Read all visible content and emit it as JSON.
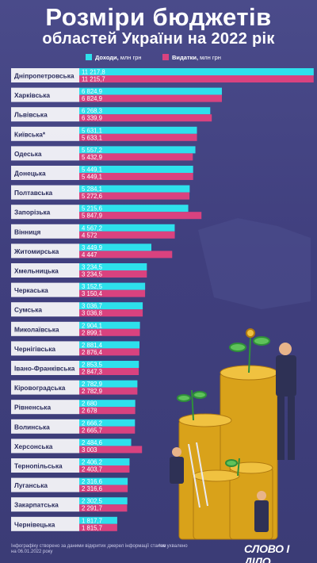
{
  "title_line1": "Розміри бюджетів",
  "title_line2": "областей України на 2022 рік",
  "legend": {
    "income": "Доходи,",
    "income_unit": "млн грн",
    "expense": "Видатки,",
    "expense_unit": "млн грн"
  },
  "colors": {
    "income": "#2ee0ec",
    "expense": "#d9427f",
    "coin": "#e0a91c"
  },
  "footer": {
    "source": "Інфографіку створено за даними відкритих джерел інформації станом на 06.01.2022 року",
    "asterisk_note": "*не ухвалено",
    "brand": "СЛОВО І ДІЛО"
  },
  "chart_data": {
    "type": "bar",
    "orientation": "horizontal",
    "categories": [
      "Дніпропетровська",
      "Харківська",
      "Львівська",
      "Київська*",
      "Одеська",
      "Донецька",
      "Полтавська",
      "Запорізька",
      "Вінниця",
      "Житомирська",
      "Хмельницька",
      "Черкаська",
      "Сумська",
      "Миколаївська",
      "Чернігівська",
      "Івано-Франківська",
      "Кіровоградська",
      "Рівненська",
      "Волинська",
      "Херсонська",
      "Тернопільська",
      "Луганська",
      "Закарпатська",
      "Чернівецька"
    ],
    "series": [
      {
        "name": "Доходи",
        "values": [
          11217.8,
          6824.9,
          6268.3,
          5631.1,
          5557.2,
          5449.1,
          5284.1,
          5215.6,
          4567.2,
          3449.9,
          3234.5,
          3152.5,
          3036.7,
          2904.1,
          2881.4,
          2853.5,
          2782.9,
          2680,
          2666.2,
          2484.6,
          2406.2,
          2316.6,
          2302.5,
          1817.7
        ],
        "labels": [
          "11 217,8",
          "6 824,9",
          "6 268,3",
          "5 631,1",
          "5 557,2",
          "5 449,1",
          "5 284,1",
          "5 215,6",
          "4 567,2",
          "3 449,9",
          "3 234,5",
          "3 152,5",
          "3 036,7",
          "2 904,1",
          "2 881,4",
          "2 853,5",
          "2 782,9",
          "2 680",
          "2 666,2",
          "2 484,6",
          "2 406,2",
          "2 316,6",
          "2 302,5",
          "1 817,7"
        ]
      },
      {
        "name": "Видатки",
        "values": [
          11215.7,
          6824.9,
          6339.9,
          5633.1,
          5432.9,
          5449.1,
          5272.6,
          5847.9,
          4572,
          4447,
          3234.5,
          3150.4,
          3036.8,
          2899.1,
          2876.4,
          2847.3,
          2782.9,
          2678,
          2665.7,
          3003,
          2403.7,
          2316.6,
          2291.7,
          1815.7
        ],
        "labels": [
          "11 215,7",
          "6 824,9",
          "6 339,9",
          "5 633,1",
          "5 432,9",
          "5 449,1",
          "5 272,6",
          "5 847,9",
          "4 572",
          "4 447",
          "3 234,5",
          "3 150,4",
          "3 036,8",
          "2 899,1",
          "2 876,4",
          "2 847,3",
          "2 782,9",
          "2 678",
          "2 665,7",
          "3 003",
          "2 403,7",
          "2 316,6",
          "2 291,7",
          "1 815,7"
        ]
      }
    ],
    "unit": "млн грн",
    "xlim": [
      0,
      11300
    ]
  }
}
